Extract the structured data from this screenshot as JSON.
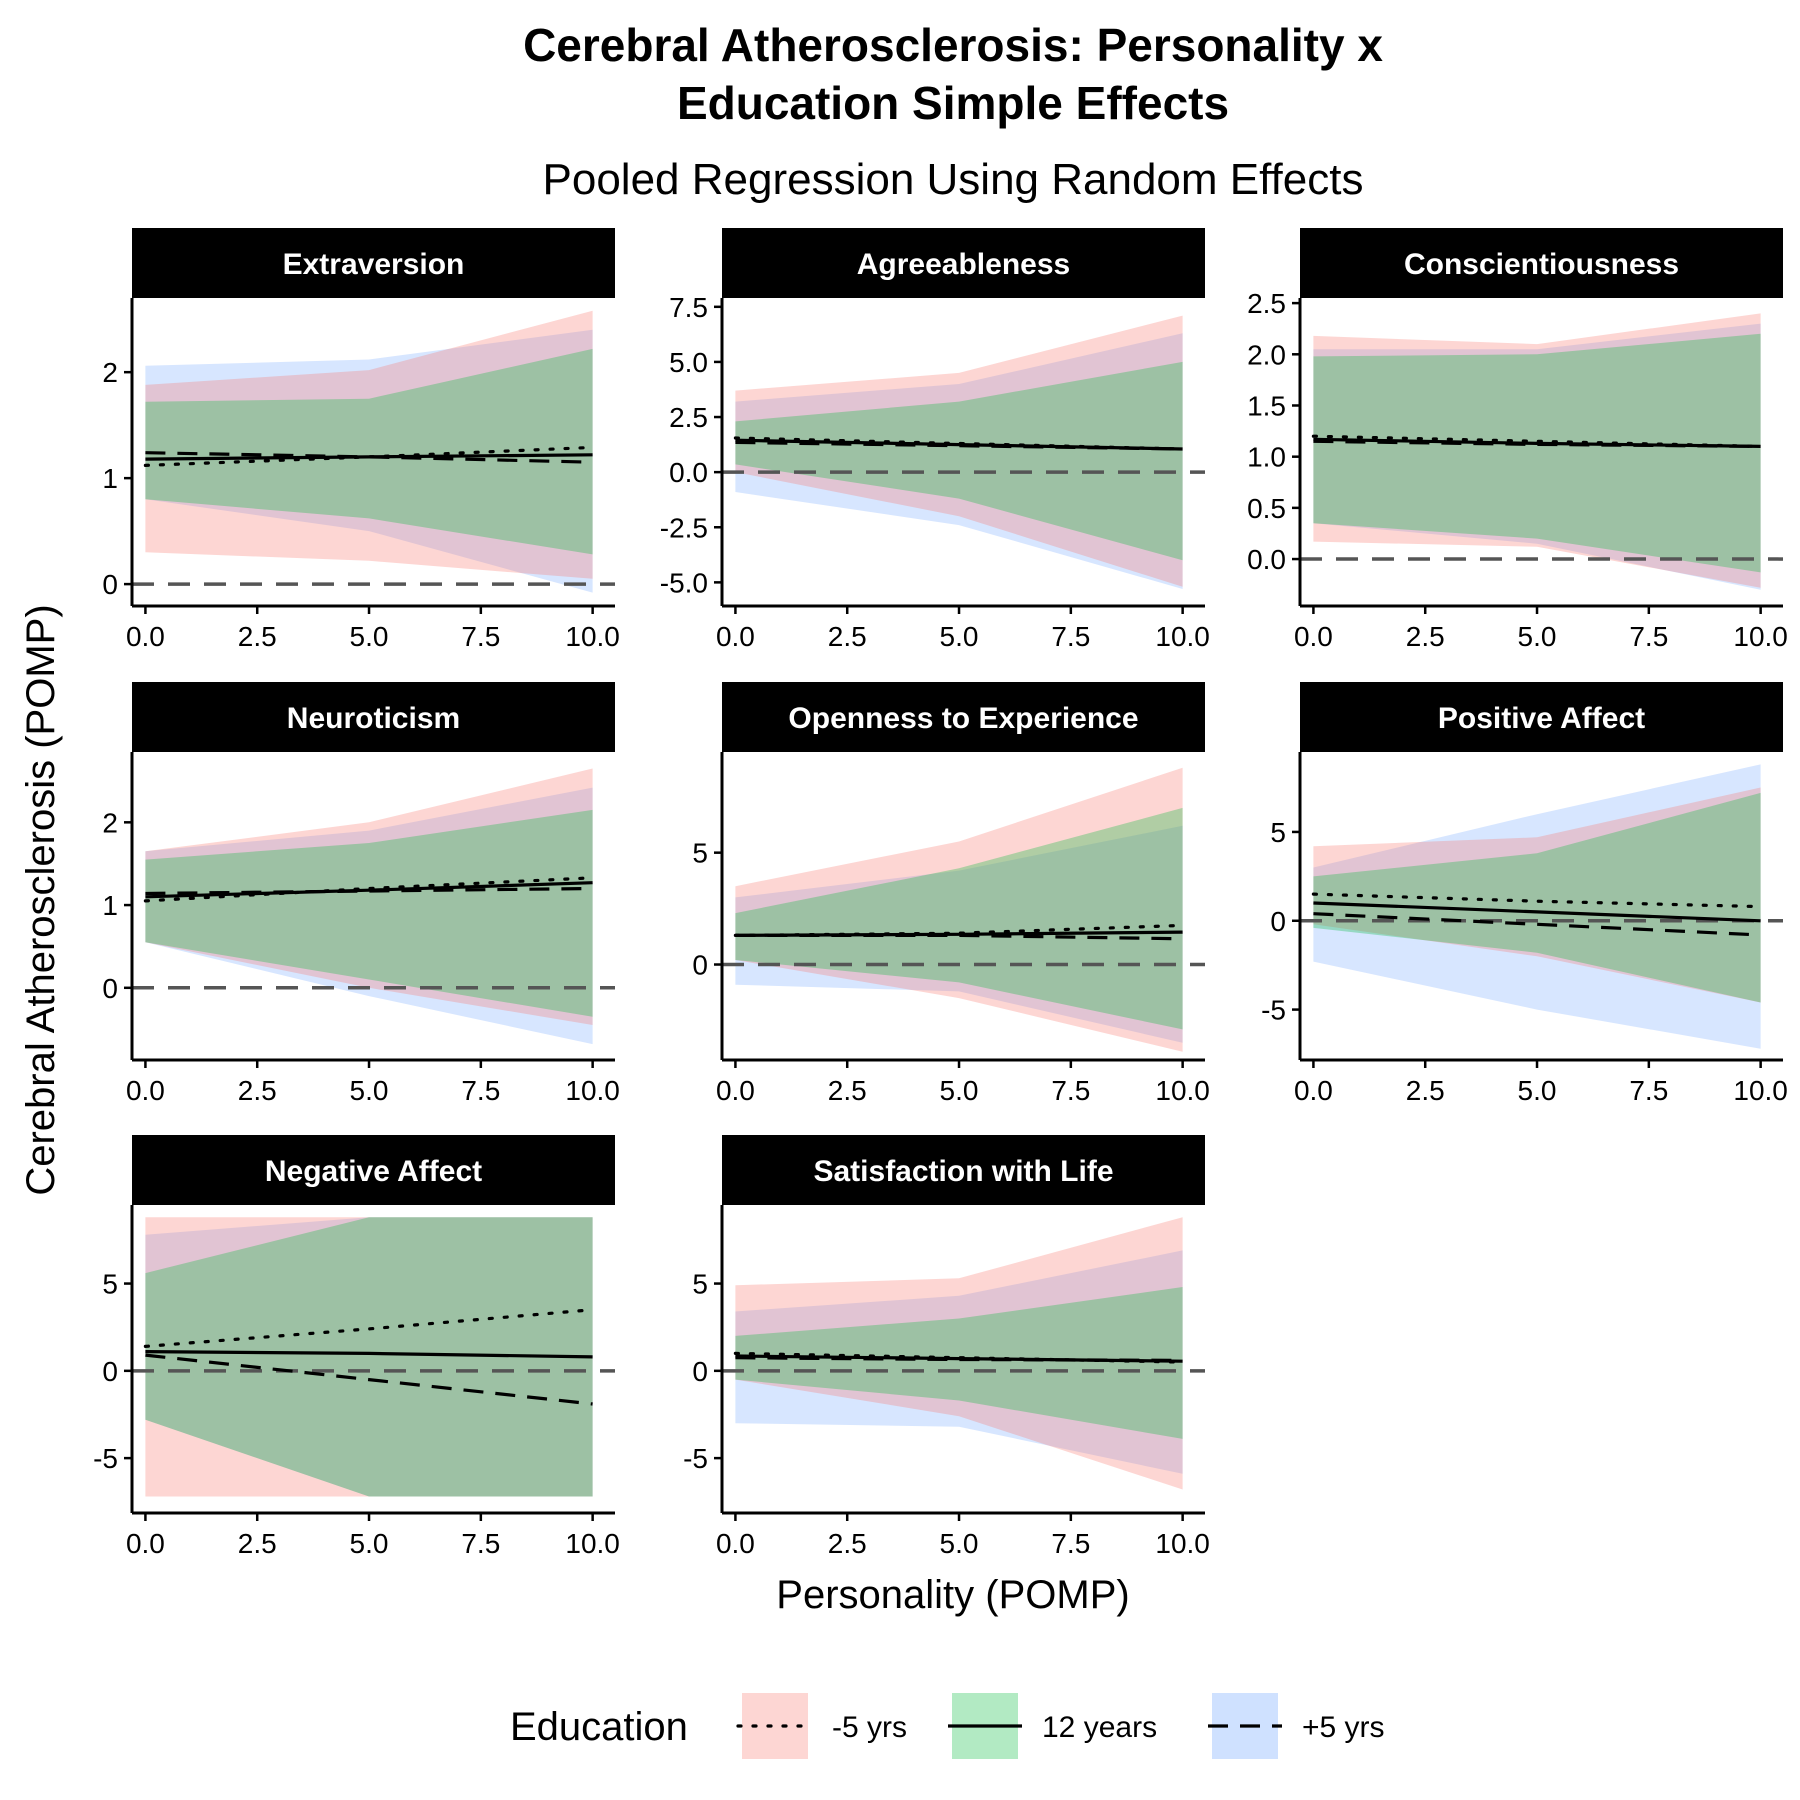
{
  "chart_data": {
    "type": "line",
    "title": "Cerebral Atherosclerosis: Personality x Education Simple Effects",
    "title_lines": [
      "Cerebral Atherosclerosis: Personality x",
      "Education Simple Effects"
    ],
    "subtitle": "Pooled Regression Using Random Effects",
    "xlabel": "Personality (POMP)",
    "ylabel": "Cerebral Atherosclerosis (POMP)",
    "legend": {
      "title": "Education",
      "position": "bottom",
      "entries": [
        {
          "label": "-5 yrs",
          "linetype": "dotted",
          "fill": "#F8766D"
        },
        {
          "label": "12 years",
          "linetype": "solid",
          "fill": "#00BA38"
        },
        {
          "label": "+5 yrs",
          "linetype": "dashed",
          "fill": "#619CFF"
        }
      ]
    },
    "colors": {
      "band_minus5": "#F8766D",
      "band_12": "#00BA38",
      "band_plus5": "#619CFF",
      "strip": "#000000",
      "reference_line": "#555555"
    },
    "reference_line_y": 0,
    "x_ticks": [
      "0.0",
      "2.5",
      "5.0",
      "7.5",
      "10.0"
    ],
    "panels": [
      {
        "title": "Extraversion",
        "xlim": [
          -0.3,
          10.5
        ],
        "ylim": [
          -0.15,
          2.7
        ],
        "y_ticks": [
          0,
          1,
          2
        ],
        "y_tick_labels": [
          "0",
          "1",
          "2"
        ],
        "series": [
          {
            "label": "-5 yrs",
            "x": [
              0,
              5,
              10
            ],
            "y": [
              1.12,
              1.2,
              1.29
            ],
            "lower": [
              0.3,
              0.22,
              0.05
            ],
            "upper": [
              1.88,
              2.02,
              2.58
            ]
          },
          {
            "label": "12 years",
            "x": [
              0,
              5,
              10
            ],
            "y": [
              1.18,
              1.2,
              1.22
            ],
            "lower": [
              0.8,
              0.62,
              0.28
            ],
            "upper": [
              1.72,
              1.75,
              2.22
            ]
          },
          {
            "label": "+5 yrs",
            "x": [
              0,
              5,
              10
            ],
            "y": [
              1.24,
              1.2,
              1.15
            ],
            "lower": [
              0.8,
              0.5,
              -0.08
            ],
            "upper": [
              2.06,
              2.12,
              2.4
            ]
          }
        ]
      },
      {
        "title": "Agreeableness",
        "xlim": [
          -0.3,
          10.5
        ],
        "ylim": [
          -5.8,
          7.9
        ],
        "y_ticks": [
          -5,
          -2.5,
          0,
          2.5,
          5,
          7.5
        ],
        "y_tick_labels": [
          "-5.0",
          "-2.5",
          "0.0",
          "2.5",
          "5.0",
          "7.5"
        ],
        "series": [
          {
            "label": "-5 yrs",
            "x": [
              0,
              5,
              10
            ],
            "y": [
              1.55,
              1.3,
              1.05
            ],
            "lower": [
              0.0,
              -2.0,
              -5.2
            ],
            "upper": [
              3.7,
              4.5,
              7.1
            ]
          },
          {
            "label": "12 years",
            "x": [
              0,
              5,
              10
            ],
            "y": [
              1.45,
              1.25,
              1.05
            ],
            "lower": [
              0.35,
              -1.2,
              -4.0
            ],
            "upper": [
              2.3,
              3.2,
              5.0
            ]
          },
          {
            "label": "+5 yrs",
            "x": [
              0,
              5,
              10
            ],
            "y": [
              1.35,
              1.2,
              1.05
            ],
            "lower": [
              -0.9,
              -2.4,
              -5.3
            ],
            "upper": [
              3.2,
              4.0,
              6.3
            ]
          }
        ]
      },
      {
        "title": "Conscientiousness",
        "xlim": [
          -0.3,
          10.5
        ],
        "ylim": [
          -0.4,
          2.55
        ],
        "y_ticks": [
          0,
          0.5,
          1,
          1.5,
          2,
          2.5
        ],
        "y_tick_labels": [
          "0.0",
          "0.5",
          "1.0",
          "1.5",
          "2.0",
          "2.5"
        ],
        "series": [
          {
            "label": "-5 yrs",
            "x": [
              0,
              5,
              10
            ],
            "y": [
              1.2,
              1.15,
              1.1
            ],
            "lower": [
              0.17,
              0.12,
              -0.28
            ],
            "upper": [
              2.18,
              2.1,
              2.4
            ]
          },
          {
            "label": "12 years",
            "x": [
              0,
              5,
              10
            ],
            "y": [
              1.17,
              1.13,
              1.1
            ],
            "lower": [
              0.35,
              0.2,
              -0.13
            ],
            "upper": [
              1.98,
              2.0,
              2.2
            ]
          },
          {
            "label": "+5 yrs",
            "x": [
              0,
              5,
              10
            ],
            "y": [
              1.15,
              1.12,
              1.1
            ],
            "lower": [
              0.35,
              0.15,
              -0.3
            ],
            "upper": [
              2.05,
              2.05,
              2.3
            ]
          }
        ]
      },
      {
        "title": "Neuroticism",
        "xlim": [
          -0.3,
          10.5
        ],
        "ylim": [
          -0.8,
          2.85
        ],
        "y_ticks": [
          0,
          1,
          2
        ],
        "y_tick_labels": [
          "0",
          "1",
          "2"
        ],
        "series": [
          {
            "label": "-5 yrs",
            "x": [
              0,
              5,
              10
            ],
            "y": [
              1.05,
              1.2,
              1.33
            ],
            "lower": [
              0.55,
              0.0,
              -0.45
            ],
            "upper": [
              1.65,
              2.0,
              2.65
            ]
          },
          {
            "label": "12 years",
            "x": [
              0,
              5,
              10
            ],
            "y": [
              1.1,
              1.18,
              1.27
            ],
            "lower": [
              0.55,
              0.1,
              -0.35
            ],
            "upper": [
              1.55,
              1.75,
              2.15
            ]
          },
          {
            "label": "+5 yrs",
            "x": [
              0,
              5,
              10
            ],
            "y": [
              1.14,
              1.17,
              1.2
            ],
            "lower": [
              0.55,
              -0.1,
              -0.68
            ],
            "upper": [
              1.65,
              1.9,
              2.42
            ]
          }
        ]
      },
      {
        "title": "Openness to Experience",
        "xlim": [
          -0.3,
          10.5
        ],
        "ylim": [
          -4.0,
          9.5
        ],
        "y_ticks": [
          0,
          5
        ],
        "y_tick_labels": [
          "0",
          "5"
        ],
        "series": [
          {
            "label": "-5 yrs",
            "x": [
              0,
              5,
              10
            ],
            "y": [
              1.3,
              1.4,
              1.75
            ],
            "lower": [
              0.2,
              -1.5,
              -3.9
            ],
            "upper": [
              3.5,
              5.5,
              8.8
            ]
          },
          {
            "label": "12 years",
            "x": [
              0,
              5,
              10
            ],
            "y": [
              1.3,
              1.35,
              1.45
            ],
            "lower": [
              0.2,
              -0.8,
              -2.9
            ],
            "upper": [
              2.3,
              4.3,
              7.0
            ]
          },
          {
            "label": "+5 yrs",
            "x": [
              0,
              5,
              10
            ],
            "y": [
              1.3,
              1.3,
              1.15
            ],
            "lower": [
              -0.9,
              -1.2,
              -3.5
            ],
            "upper": [
              3.0,
              4.2,
              6.2
            ]
          }
        ]
      },
      {
        "title": "Positive Affect",
        "xlim": [
          -0.3,
          10.5
        ],
        "ylim": [
          -7.5,
          9.5
        ],
        "y_ticks": [
          -5,
          0,
          5
        ],
        "y_tick_labels": [
          "-5",
          "0",
          "5"
        ],
        "series": [
          {
            "label": "-5 yrs",
            "x": [
              0,
              5,
              10
            ],
            "y": [
              1.5,
              1.1,
              0.8
            ],
            "lower": [
              -0.2,
              -2.0,
              -4.6
            ],
            "upper": [
              4.2,
              4.7,
              7.5
            ]
          },
          {
            "label": "12 years",
            "x": [
              0,
              5,
              10
            ],
            "y": [
              1.0,
              0.5,
              0.0
            ],
            "lower": [
              -0.4,
              -1.8,
              -4.6
            ],
            "upper": [
              2.5,
              3.8,
              7.2
            ]
          },
          {
            "label": "+5 yrs",
            "x": [
              0,
              5,
              10
            ],
            "y": [
              0.4,
              -0.2,
              -0.8
            ],
            "lower": [
              -2.3,
              -5.0,
              -7.2
            ],
            "upper": [
              3.0,
              6.0,
              8.8
            ]
          }
        ]
      },
      {
        "title": "Negative Affect",
        "xlim": [
          -0.3,
          10.5
        ],
        "ylim": [
          -7.8,
          9.5
        ],
        "y_ticks": [
          -5,
          0,
          5
        ],
        "y_tick_labels": [
          "-5",
          "0",
          "5"
        ],
        "series": [
          {
            "label": "-5 yrs",
            "x": [
              0,
              5,
              10
            ],
            "y": [
              1.4,
              2.4,
              3.5
            ],
            "lower": [
              -7.2,
              -7.2,
              -7.2
            ],
            "upper": [
              8.8,
              8.8,
              8.8
            ]
          },
          {
            "label": "12 years",
            "x": [
              0,
              5,
              10
            ],
            "y": [
              1.1,
              1.0,
              0.8
            ],
            "lower": [
              -2.8,
              -7.2,
              -7.2
            ],
            "upper": [
              5.6,
              8.8,
              8.8
            ]
          },
          {
            "label": "+5 yrs",
            "x": [
              0,
              5,
              10
            ],
            "y": [
              0.9,
              -0.5,
              -1.9
            ],
            "lower": [
              -2.8,
              -7.2,
              -7.2
            ],
            "upper": [
              7.8,
              8.8,
              8.8
            ]
          }
        ]
      },
      {
        "title": "Satisfaction with Life",
        "xlim": [
          -0.3,
          10.5
        ],
        "ylim": [
          -7.8,
          9.5
        ],
        "y_ticks": [
          -5,
          0,
          5
        ],
        "y_tick_labels": [
          "-5",
          "0",
          "5"
        ],
        "series": [
          {
            "label": "-5 yrs",
            "x": [
              0,
              5,
              10
            ],
            "y": [
              1.0,
              0.75,
              0.5
            ],
            "lower": [
              -0.5,
              -2.6,
              -6.8
            ],
            "upper": [
              4.9,
              5.3,
              8.8
            ]
          },
          {
            "label": "12 years",
            "x": [
              0,
              5,
              10
            ],
            "y": [
              0.85,
              0.7,
              0.55
            ],
            "lower": [
              -0.5,
              -1.7,
              -3.9
            ],
            "upper": [
              2.0,
              3.0,
              4.8
            ]
          },
          {
            "label": "+5 yrs",
            "x": [
              0,
              5,
              10
            ],
            "y": [
              0.75,
              0.65,
              0.6
            ],
            "lower": [
              -3.0,
              -3.2,
              -5.9
            ],
            "upper": [
              3.4,
              4.3,
              6.9
            ]
          }
        ]
      }
    ]
  }
}
